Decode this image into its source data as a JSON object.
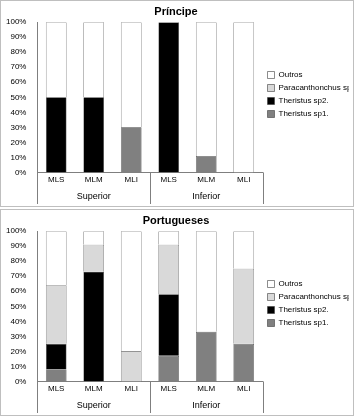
{
  "chart_data": [
    {
      "type": "bar",
      "title": "Príncipe",
      "stacked": true,
      "grid": false,
      "legend": "right",
      "categories": [
        "MLS",
        "MLM",
        "MLI",
        "MLS",
        "MLM",
        "MLI"
      ],
      "category_groups": [
        "Superior",
        "Superior",
        "Superior",
        "Inferior",
        "Inferior",
        "Inferior"
      ],
      "ylim": [
        0,
        100
      ],
      "yticks": [
        {
          "value": 0,
          "label": "0%"
        },
        {
          "value": 10,
          "label": "10%"
        },
        {
          "value": 20,
          "label": "20%"
        },
        {
          "value": 30,
          "label": "30%"
        },
        {
          "value": 40,
          "label": "40%"
        },
        {
          "value": 50,
          "label": "50%"
        },
        {
          "value": 60,
          "label": "60%"
        },
        {
          "value": 70,
          "label": "70%"
        },
        {
          "value": 80,
          "label": "80%"
        },
        {
          "value": 90,
          "label": "90%"
        },
        {
          "value": 100,
          "label": "100%"
        }
      ],
      "series": [
        {
          "name": "Theristus sp1.",
          "color": "#808080",
          "values": [
            0,
            0,
            30,
            0,
            11,
            0
          ]
        },
        {
          "name": "Theristus sp2.",
          "color": "#000000",
          "values": [
            50,
            50,
            0,
            100,
            0,
            0
          ]
        },
        {
          "name": "Paracanthonchus sp.",
          "color": "#d9d9d9",
          "values": [
            0,
            0,
            0,
            0,
            0,
            0
          ]
        },
        {
          "name": "Outros",
          "color": "#ffffff",
          "values": [
            50,
            50,
            70,
            0,
            89,
            100
          ]
        }
      ]
    },
    {
      "type": "bar",
      "title": "Portugueses",
      "stacked": true,
      "grid": false,
      "legend": "right",
      "categories": [
        "MLS",
        "MLM",
        "MLI",
        "MLS",
        "MLM",
        "MLI"
      ],
      "category_groups": [
        "Superior",
        "Superior",
        "Superior",
        "Inferior",
        "Inferior",
        "Inferior"
      ],
      "ylim": [
        0,
        100
      ],
      "yticks": [
        {
          "value": 0,
          "label": "0%"
        },
        {
          "value": 10,
          "label": "10%"
        },
        {
          "value": 20,
          "label": "20%"
        },
        {
          "value": 30,
          "label": "30%"
        },
        {
          "value": 40,
          "label": "40%"
        },
        {
          "value": 50,
          "label": "50%"
        },
        {
          "value": 60,
          "label": "60%"
        },
        {
          "value": 70,
          "label": "70%"
        },
        {
          "value": 80,
          "label": "80%"
        },
        {
          "value": 90,
          "label": "90%"
        },
        {
          "value": 100,
          "label": "100%"
        }
      ],
      "series": [
        {
          "name": "Theristus sp1.",
          "color": "#808080",
          "values": [
            8,
            0,
            0,
            17,
            33,
            25
          ]
        },
        {
          "name": "Theristus sp2.",
          "color": "#000000",
          "values": [
            17,
            73,
            0,
            41,
            0,
            0
          ]
        },
        {
          "name": "Paracanthonchus sp.",
          "color": "#d9d9d9",
          "values": [
            39,
            18,
            20,
            33,
            0,
            50
          ]
        },
        {
          "name": "Outros",
          "color": "#ffffff",
          "values": [
            36,
            9,
            80,
            9,
            67,
            25
          ]
        }
      ]
    }
  ]
}
